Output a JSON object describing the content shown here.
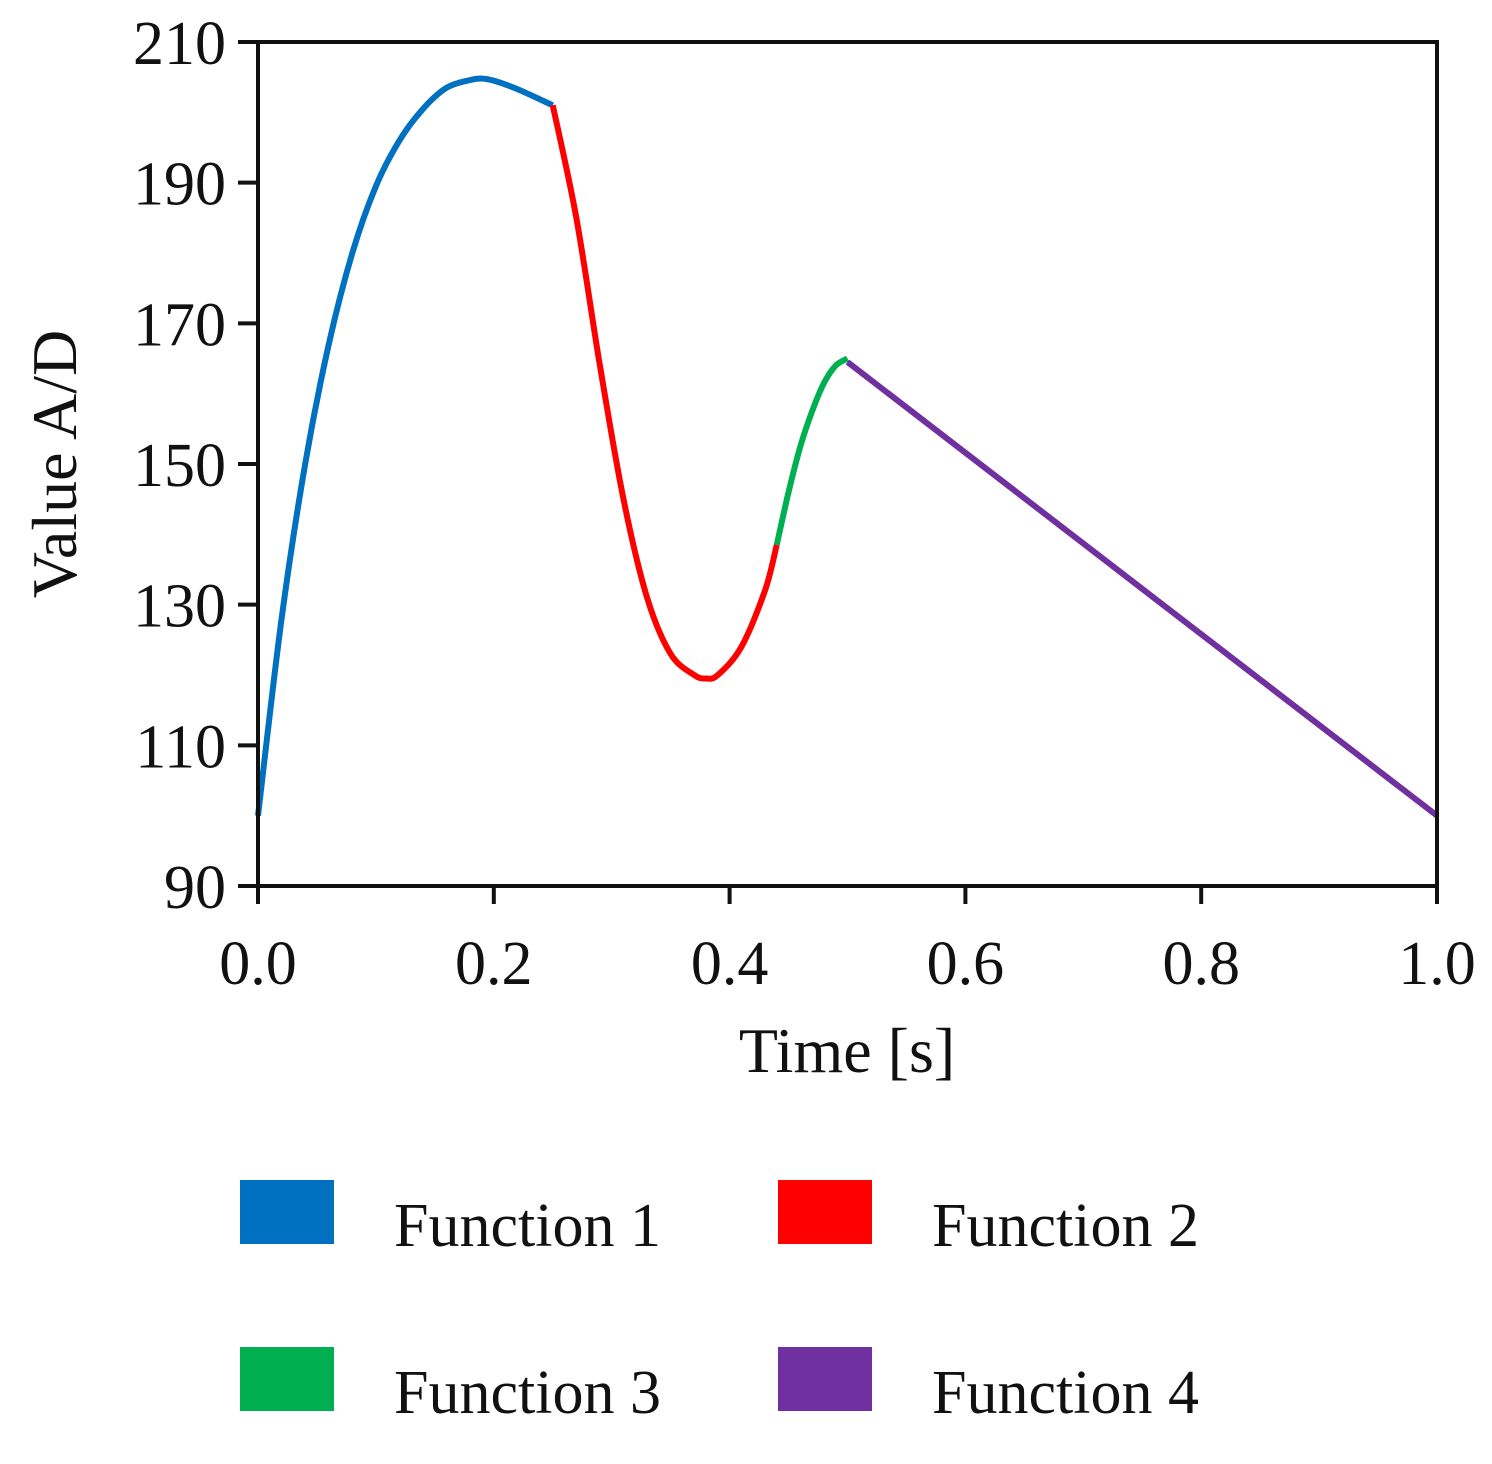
{
  "chart_data": {
    "type": "line",
    "title": "",
    "xlabel": "Time [s]",
    "ylabel": "Value A/D",
    "xlim": [
      0.0,
      1.0
    ],
    "ylim": [
      90,
      210
    ],
    "x_ticks": [
      "0.0",
      "0.2",
      "0.4",
      "0.6",
      "0.8",
      "1.0"
    ],
    "y_ticks": [
      "90",
      "110",
      "130",
      "150",
      "170",
      "190",
      "210"
    ],
    "grid": false,
    "legend_position": "bottom",
    "series": [
      {
        "name": "Function 1",
        "color": "#0070C0",
        "x": [
          0.0,
          0.02,
          0.04,
          0.06,
          0.08,
          0.1,
          0.12,
          0.14,
          0.16,
          0.18,
          0.19,
          0.2,
          0.22,
          0.25
        ],
        "y": [
          100,
          128,
          150,
          167,
          180,
          189.5,
          196,
          200.5,
          203.5,
          204.6,
          204.8,
          204.5,
          203.3,
          201
        ]
      },
      {
        "name": "Function 2",
        "color": "#FF0000",
        "x": [
          0.25,
          0.27,
          0.29,
          0.31,
          0.33,
          0.35,
          0.37,
          0.38,
          0.39,
          0.41,
          0.43,
          0.44
        ],
        "y": [
          201,
          185,
          164,
          145,
          131,
          123,
          120,
          119.5,
          120,
          124,
          132,
          138.5
        ]
      },
      {
        "name": "Function 3",
        "color": "#00B050",
        "x": [
          0.44,
          0.45,
          0.46,
          0.47,
          0.48,
          0.49,
          0.5
        ],
        "y": [
          138.5,
          146,
          152.5,
          157.5,
          161.5,
          164,
          165
        ]
      },
      {
        "name": "Function 4",
        "color": "#7030A0",
        "x": [
          0.5,
          1.0
        ],
        "y": [
          164.5,
          100
        ]
      }
    ]
  }
}
